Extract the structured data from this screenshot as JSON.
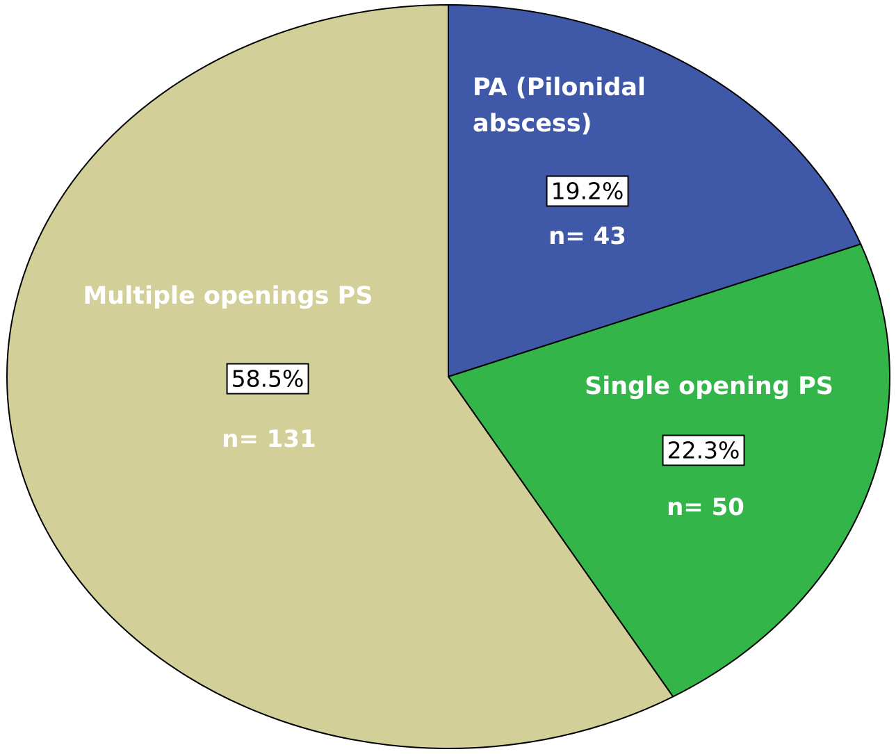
{
  "chart_data": {
    "type": "pie",
    "categories": [
      "PA (Pilonidal abscess)",
      "Single opening PS",
      "Multiple openings PS"
    ],
    "values": [
      19.2,
      22.3,
      58.5
    ],
    "value_labels": [
      "19.2%",
      "22.3%",
      "58.5%"
    ],
    "counts": [
      43,
      50,
      131
    ],
    "count_labels": [
      "n= 43",
      "n= 50",
      "n= 131"
    ],
    "colors": [
      "#3f58a8",
      "#33b54a",
      "#d3cf98"
    ]
  }
}
